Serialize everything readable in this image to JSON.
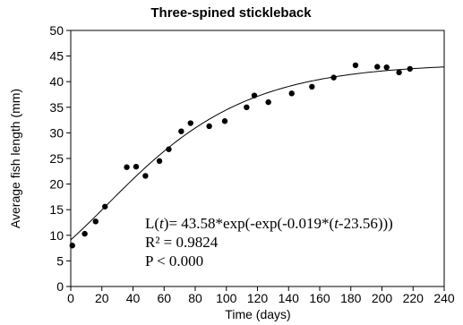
{
  "chart_data": {
    "type": "scatter",
    "title": "Three-spined stickleback",
    "xlabel": "Time (days)",
    "ylabel": "Average fish length (mm)",
    "xlim": [
      0,
      240
    ],
    "ylim": [
      0,
      50
    ],
    "x_ticks": [
      0,
      20,
      40,
      60,
      80,
      100,
      120,
      140,
      160,
      180,
      200,
      220,
      240
    ],
    "y_ticks": [
      0,
      5,
      10,
      15,
      20,
      25,
      30,
      35,
      40,
      45,
      50
    ],
    "grid": false,
    "points": [
      {
        "x": 1,
        "y": 8
      },
      {
        "x": 9,
        "y": 10.3
      },
      {
        "x": 16,
        "y": 12.7
      },
      {
        "x": 22,
        "y": 15.6
      },
      {
        "x": 36,
        "y": 23.3
      },
      {
        "x": 42,
        "y": 23.4
      },
      {
        "x": 48,
        "y": 21.6
      },
      {
        "x": 57,
        "y": 24.5
      },
      {
        "x": 63,
        "y": 26.8
      },
      {
        "x": 71,
        "y": 30.3
      },
      {
        "x": 77,
        "y": 31.9
      },
      {
        "x": 89,
        "y": 31.3
      },
      {
        "x": 99,
        "y": 32.3
      },
      {
        "x": 113,
        "y": 35
      },
      {
        "x": 118,
        "y": 37.3
      },
      {
        "x": 127,
        "y": 36
      },
      {
        "x": 142,
        "y": 37.7
      },
      {
        "x": 155,
        "y": 39
      },
      {
        "x": 169,
        "y": 40.8
      },
      {
        "x": 183,
        "y": 43.2
      },
      {
        "x": 197,
        "y": 42.9
      },
      {
        "x": 203,
        "y": 42.8
      },
      {
        "x": 211,
        "y": 41.8
      },
      {
        "x": 218,
        "y": 42.5
      }
    ],
    "fit": {
      "L_inf": 43.58,
      "k": 0.019,
      "t0": 23.56
    },
    "annotations": {
      "eq_prefix": "L(",
      "eq_var": "t",
      "eq_mid": ")= 43.58*exp(-exp(-0.019*(",
      "eq_var2": "t",
      "eq_suffix": "-23.56)))",
      "r2": "R² = 0.9824",
      "p": "P < 0.000"
    }
  }
}
